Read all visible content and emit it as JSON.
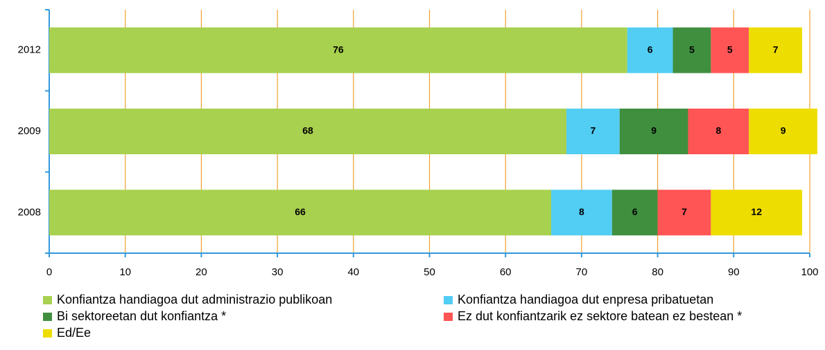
{
  "chart_data": {
    "type": "bar",
    "orientation": "horizontal",
    "stacked": true,
    "categories": [
      "2012",
      "2009",
      "2008"
    ],
    "series": [
      {
        "name": "Konfiantza handiagoa dut administrazio publikoan",
        "color": "#a8d14f",
        "values": [
          76,
          68,
          66
        ]
      },
      {
        "name": "Konfiantza handiagoa dut enpresa pribatuetan",
        "color": "#52cdf3",
        "values": [
          6,
          7,
          8
        ]
      },
      {
        "name": "Bi sektoreetan dut konfiantza *",
        "color": "#3f8f3f",
        "values": [
          5,
          9,
          6
        ]
      },
      {
        "name": "Ez dut konfiantzarik ez sektore batean ez bestean *",
        "color": "#ff5555",
        "values": [
          5,
          8,
          7
        ]
      },
      {
        "name": "Ed/Ee",
        "color": "#eedd00",
        "values": [
          7,
          9,
          12
        ]
      }
    ],
    "xlim": [
      0,
      100
    ],
    "xticks": [
      0,
      10,
      20,
      30,
      40,
      50,
      60,
      70,
      80,
      90,
      100
    ],
    "grid": true
  }
}
